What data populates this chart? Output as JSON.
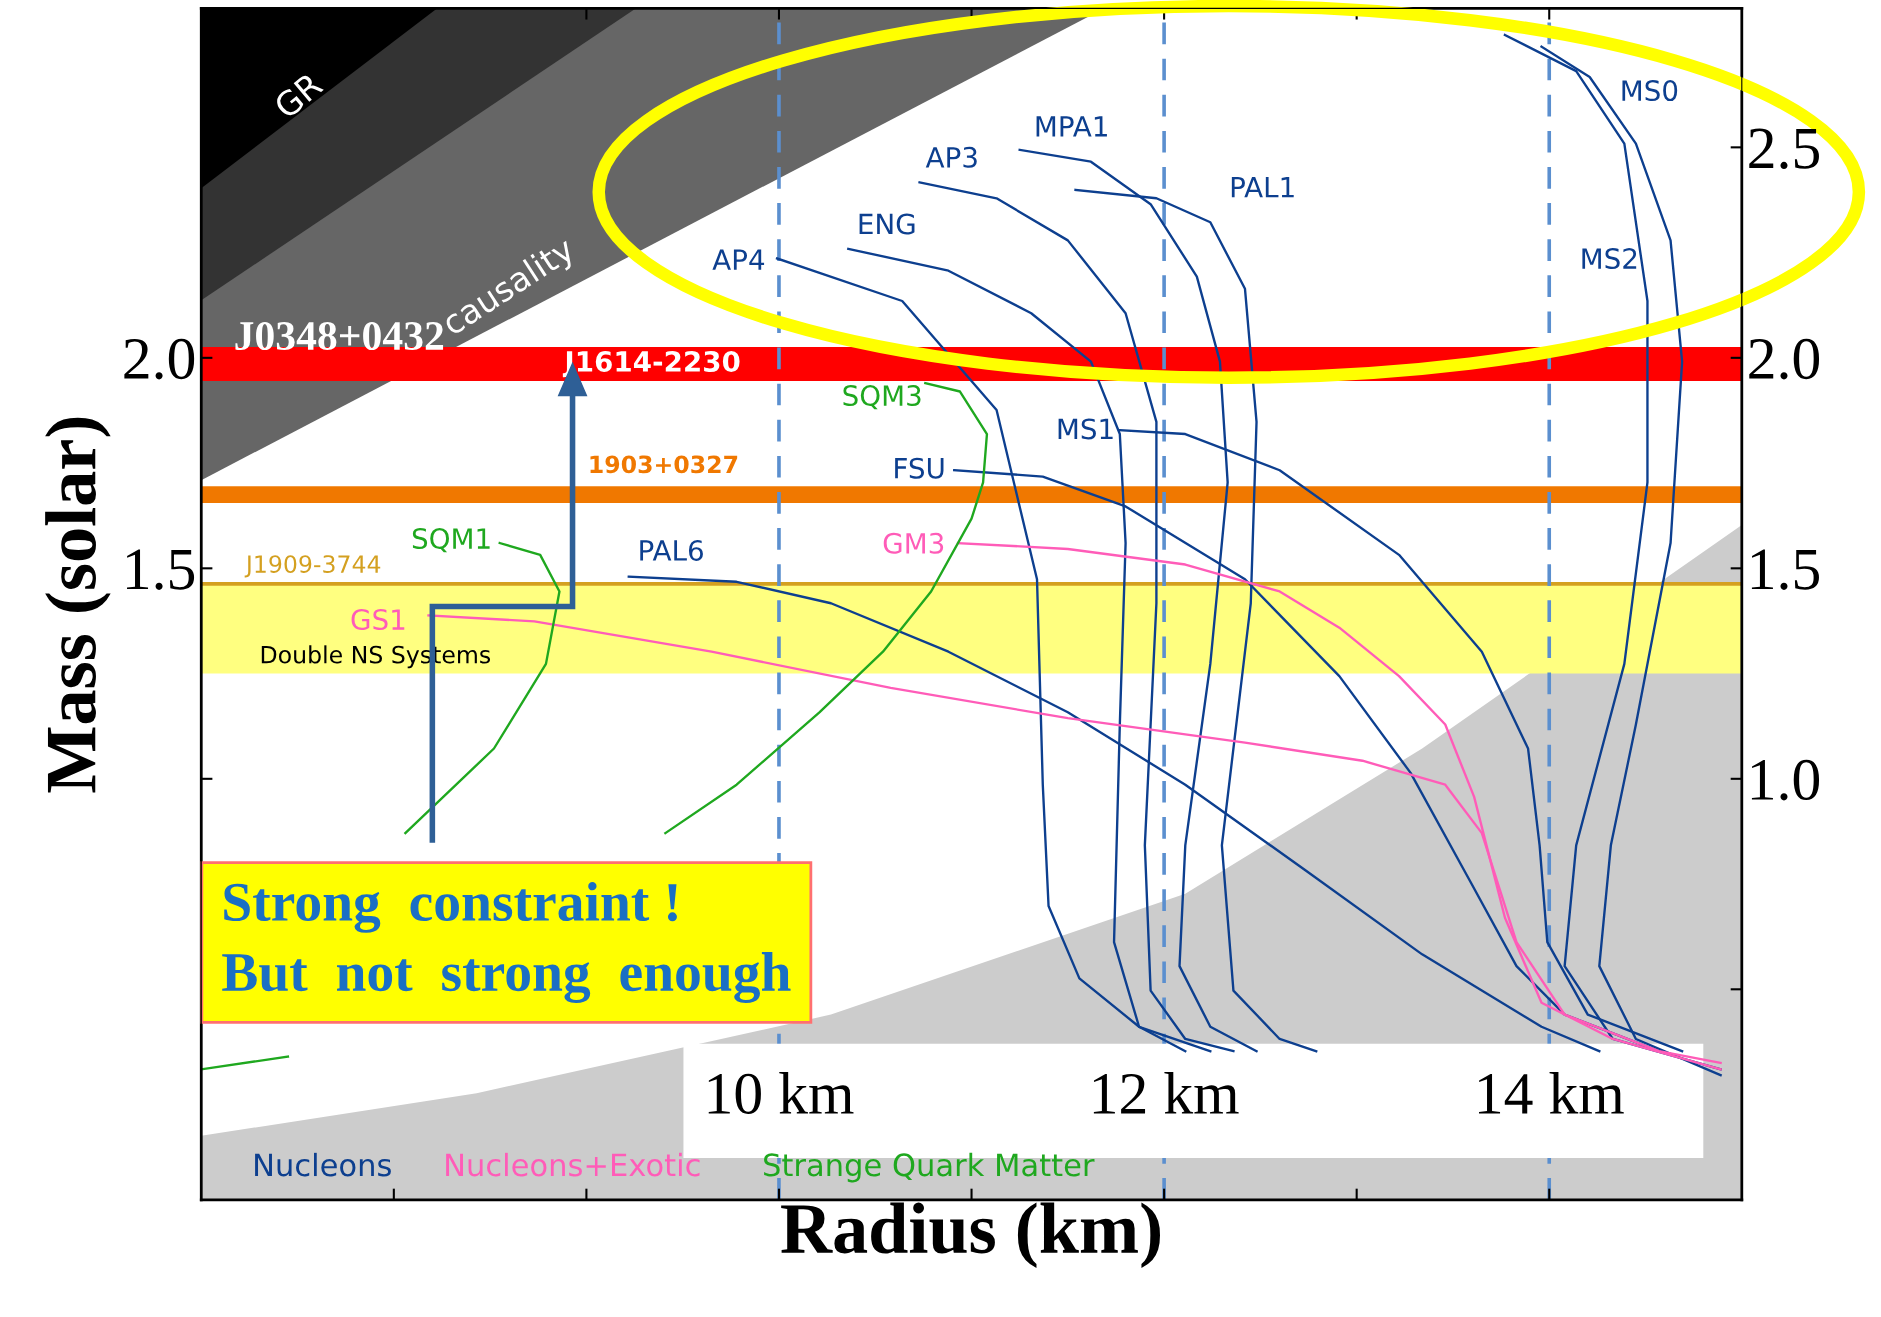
{
  "chart_data": {
    "type": "line",
    "xlabel": "Radius (km)",
    "ylabel": "Mass (solar)",
    "xlim": [
      7,
      15
    ],
    "xticks": [
      {
        "value": 8,
        "label": null
      },
      {
        "value": 9,
        "label": null
      },
      {
        "value": 10,
        "label": "10 km"
      },
      {
        "value": 11,
        "label": null
      },
      {
        "value": 12,
        "label": "12 km"
      },
      {
        "value": 13,
        "label": null
      },
      {
        "value": 14,
        "label": "14 km"
      }
    ],
    "ylim": [
      0,
      2.83
    ],
    "yticks": [
      {
        "value": 0.5,
        "label": null
      },
      {
        "value": 1.0,
        "label": null
      },
      {
        "value": 1.5,
        "label": "1.5"
      },
      {
        "value": 2.0,
        "label": "2.0"
      },
      {
        "value": 2.5,
        "label": null
      }
    ],
    "y2lim": [
      0,
      2.83
    ],
    "y2ticks": [
      {
        "value": 0.5,
        "label": null
      },
      {
        "value": 1.0,
        "label": "1.0"
      },
      {
        "value": 1.5,
        "label": "1.5"
      },
      {
        "value": 2.0,
        "label": "2.0"
      },
      {
        "value": 2.5,
        "label": "2.5"
      }
    ],
    "series": [
      {
        "type": "area",
        "color": "#cccccc",
        "x": [
          7,
          8.43,
          10.27,
          12.11,
          13.34,
          15
        ],
        "values": [
          0.152,
          0.253,
          0.44,
          0.727,
          1.072,
          1.603
        ]
      },
      {
        "name": "AP4",
        "color": "#0d3f8f",
        "x": [
          9.99,
          10.64,
          11.13,
          11.34,
          11.37,
          11.4,
          11.56,
          11.87,
          12.11
        ],
        "values": [
          2.236,
          2.135,
          1.876,
          1.474,
          0.986,
          0.698,
          0.526,
          0.411,
          0.353
        ]
      },
      {
        "name": "ENG",
        "color": "#0d3f8f",
        "x": [
          10.36,
          10.88,
          11.31,
          11.62,
          11.77,
          11.8,
          11.77,
          11.74,
          11.87,
          12.24
        ],
        "values": [
          2.259,
          2.207,
          2.106,
          1.991,
          1.819,
          1.56,
          1.129,
          0.612,
          0.411,
          0.353
        ]
      },
      {
        "name": "AP3",
        "color": "#0d3f8f",
        "x": [
          10.73,
          11.13,
          11.5,
          11.8,
          11.96,
          11.96,
          11.9,
          11.93,
          12.11,
          12.36
        ],
        "values": [
          2.417,
          2.379,
          2.279,
          2.106,
          1.848,
          1.417,
          0.842,
          0.497,
          0.382,
          0.353
        ]
      },
      {
        "name": "MPA1",
        "color": "#0d3f8f",
        "x": [
          11.25,
          11.62,
          11.93,
          12.17,
          12.29,
          12.33,
          12.24,
          12.11,
          12.08,
          12.24,
          12.48
        ],
        "values": [
          2.494,
          2.466,
          2.365,
          2.193,
          1.991,
          1.704,
          1.273,
          0.842,
          0.555,
          0.411,
          0.353
        ]
      },
      {
        "name": "PAL1",
        "color": "#0d3f8f",
        "x": [
          11.54,
          11.96,
          12.24,
          12.42,
          12.48,
          12.45,
          12.3,
          12.36,
          12.6,
          12.79
        ],
        "values": [
          2.399,
          2.379,
          2.322,
          2.164,
          1.848,
          1.417,
          0.842,
          0.497,
          0.382,
          0.353
        ]
      },
      {
        "name": "MS0",
        "color": "#0d3f8f",
        "x": [
          13.96,
          14.21,
          14.45,
          14.63,
          14.69,
          14.63,
          14.45,
          14.32,
          14.26,
          14.45,
          14.89
        ],
        "values": [
          2.739,
          2.667,
          2.509,
          2.279,
          1.991,
          1.56,
          1.129,
          0.842,
          0.555,
          0.382,
          0.296
        ]
      },
      {
        "name": "MS2",
        "color": "#0d3f8f",
        "x": [
          13.77,
          14.14,
          14.39,
          14.51,
          14.51,
          14.39,
          14.14,
          14.08,
          14.33,
          14.89
        ],
        "values": [
          2.767,
          2.681,
          2.509,
          2.135,
          1.704,
          1.273,
          0.842,
          0.555,
          0.382,
          0.31
        ]
      },
      {
        "name": "MS1",
        "color": "#0d3f8f",
        "x": [
          11.77,
          12.11,
          12.6,
          13.22,
          13.65,
          13.89,
          13.95,
          13.99,
          14.2,
          14.69
        ],
        "values": [
          1.828,
          1.819,
          1.733,
          1.532,
          1.302,
          1.072,
          0.842,
          0.612,
          0.44,
          0.353
        ]
      },
      {
        "name": "FSU",
        "color": "#0d3f8f",
        "x": [
          10.91,
          11.37,
          11.8,
          12.42,
          12.91,
          13.28,
          13.59,
          13.83,
          14.08,
          14.57
        ],
        "values": [
          1.733,
          1.718,
          1.647,
          1.474,
          1.244,
          1.014,
          0.756,
          0.555,
          0.44,
          0.353
        ]
      },
      {
        "name": "PAL6",
        "color": "#0d3f8f",
        "x": [
          9.22,
          9.78,
          10.27,
          10.88,
          11.5,
          12.11,
          12.73,
          13.34,
          13.96,
          14.26
        ],
        "values": [
          1.48,
          1.468,
          1.417,
          1.302,
          1.158,
          0.986,
          0.784,
          0.583,
          0.411,
          0.353
        ]
      },
      {
        "name": "GM3",
        "color": "#ff5cb8",
        "x": [
          10.93,
          11.5,
          12.11,
          12.6,
          12.91,
          13.22,
          13.46,
          13.61,
          13.77,
          13.96,
          14.33,
          14.89
        ],
        "values": [
          1.56,
          1.546,
          1.509,
          1.445,
          1.359,
          1.244,
          1.129,
          0.957,
          0.67,
          0.468,
          0.382,
          0.31
        ]
      },
      {
        "name": "GS1",
        "color": "#ff5cb8",
        "x": [
          8.18,
          8.73,
          9.65,
          10.58,
          11.5,
          12.42,
          13.03,
          13.46,
          13.65,
          13.83,
          14.08,
          14.57,
          14.89
        ],
        "values": [
          1.388,
          1.374,
          1.302,
          1.216,
          1.144,
          1.086,
          1.043,
          0.986,
          0.871,
          0.612,
          0.44,
          0.353,
          0.325
        ]
      },
      {
        "name": "SQM1",
        "color": "#1fa81f",
        "x": [
          8.55,
          8.76,
          8.86,
          8.79,
          8.52,
          8.06
        ],
        "values": [
          1.56,
          1.532,
          1.445,
          1.273,
          1.072,
          0.871
        ]
      },
      {
        "name": "SQM3",
        "color": "#1fa81f",
        "x": [
          10.76,
          10.94,
          11.08,
          11.06,
          11.0,
          10.79,
          10.54,
          10.21,
          9.78,
          9.41,
          8.55,
          7.81,
          7.45,
          7.0
        ],
        "values": [
          1.94,
          1.92,
          1.819,
          1.704,
          1.618,
          1.445,
          1.302,
          1.158,
          0.986,
          0.871,
          null,
          null,
          0.34,
          0.31
        ]
      }
    ],
    "bands": [
      {
        "axis": "y",
        "from": 1.945,
        "to": 2.026,
        "label": "J1614-2230",
        "color": "#ff0000"
      },
      {
        "axis": "y",
        "from": 1.655,
        "to": 1.695,
        "label": "1903+0327",
        "color": "#f07800"
      },
      {
        "axis": "y",
        "from": 1.25,
        "to": 1.463,
        "label": "Double NS Systems",
        "color": "#ffff80"
      }
    ],
    "ref_lines": [
      {
        "axis": "y",
        "value": 1.463,
        "label": "J1909-3744",
        "color": "#d4a020"
      },
      {
        "axis": "x",
        "value": 10,
        "color": "#5b8fcf",
        "line_style": "dashed"
      },
      {
        "axis": "x",
        "value": 12,
        "color": "#5b8fcf",
        "line_style": "dashed"
      },
      {
        "axis": "x",
        "value": 14,
        "color": "#5b8fcf",
        "line_style": "dashed"
      }
    ],
    "annotations": [
      "GR",
      "causality",
      "J0348+0432",
      "Nucleons",
      "Nucleons+Exotic",
      "Strange Quark Matter",
      "Strong  constraint !\nBut  not  strong  enough"
    ]
  }
}
